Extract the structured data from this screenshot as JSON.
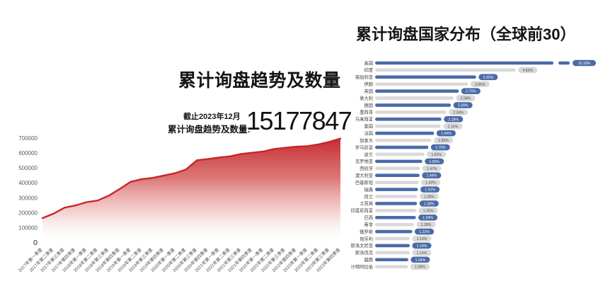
{
  "left_chart": {
    "title": "累计询盘趋势及数量",
    "stat_caption": "截止2023年12月",
    "stat_label": "累计询盘趋势及数量:",
    "stat_value": "15177847"
  },
  "right_chart": {
    "title": "累计询盘国家分布（全球前30）"
  },
  "chart_data": [
    {
      "type": "area",
      "title": "累计询盘趋势及数量",
      "xlabel": "",
      "ylabel": "",
      "ylim": [
        0,
        700000
      ],
      "yticks": [
        0,
        100000,
        200000,
        300000,
        400000,
        500000,
        600000,
        700000
      ],
      "grid": false,
      "line_color": "#c9252b",
      "fill_style": "red-to-white vertical gradient",
      "x": [
        "2017年第一季度",
        "2017年第二季度",
        "2017年第三季度",
        "2017年第四季度",
        "2018年第一季度",
        "2018年第二季度",
        "2018年第三季度",
        "2018年第四季度",
        "2019年第一季度",
        "2019年第二季度",
        "2019年第三季度",
        "2019年第四季度",
        "2020年第一季度",
        "2020年第二季度",
        "2020年第三季度",
        "2020年第四季度",
        "2021年第一季度",
        "2021年第二季度",
        "2021年第三季度",
        "2021年第四季度",
        "2022年第一季度",
        "2022年第二季度",
        "2022年第三季度",
        "2022年第四季度",
        "2023年第一季度",
        "2023年第二季度",
        "2023年第三季度",
        "2023年第四季度"
      ],
      "values": [
        165000,
        195000,
        235000,
        250000,
        272000,
        283000,
        315000,
        360000,
        408000,
        425000,
        434000,
        450000,
        465000,
        490000,
        552000,
        560000,
        570000,
        578000,
        594000,
        602000,
        610000,
        627000,
        635000,
        643000,
        646000,
        658000,
        675000,
        697000
      ]
    },
    {
      "type": "bar",
      "orientation": "horizontal",
      "title": "累计询盘国家分布（全球前30）",
      "legend": "none",
      "bar_color_blue": "#4a6ba6",
      "bar_color_gray": "#d9d9d9",
      "first_bar_truncated": true,
      "categories": [
        "美国",
        "印度",
        "保加利亚",
        "伊朗",
        "英国",
        "意大利",
        "德国",
        "墨西哥",
        "马来西亚",
        "泰国",
        "法国",
        "加拿大",
        "罗马尼亚",
        "波兰",
        "克罗地亚",
        "西班牙",
        "澳大利亚",
        "巴基斯坦",
        "瑞典",
        "荷兰",
        "土耳其",
        "印度尼西亚",
        "巴西",
        "南非",
        "俄罗斯",
        "匈牙利",
        "斯洛文尼亚",
        "斯洛伐克",
        "越南",
        "沙特阿拉伯"
      ],
      "values": [
        10.18,
        4.62,
        3.32,
        3.05,
        2.75,
        2.58,
        2.49,
        2.34,
        2.18,
        2.16,
        1.94,
        1.85,
        1.75,
        1.62,
        1.55,
        1.47,
        1.46,
        1.43,
        1.41,
        1.38,
        1.38,
        1.35,
        1.34,
        1.28,
        1.22,
        1.14,
        1.14,
        1.14,
        1.09,
        1.08
      ],
      "labels": [
        "10.18%",
        "4.62%",
        "3.32%",
        "3.05%",
        "2.75%",
        "2.58%",
        "2.49%",
        "2.34%",
        "2.18%",
        "2.16%",
        "1.94%",
        "1.85%",
        "1.75%",
        "1.62%",
        "1.55%",
        "1.47%",
        "1.46%",
        "1.43%",
        "1.41%",
        "1.38%",
        "1.38%",
        "1.35%",
        "1.34%",
        "1.28%",
        "1.22%",
        "1.14%",
        "1.14%",
        "1.14%",
        "1.09%",
        "1.08%"
      ]
    }
  ]
}
